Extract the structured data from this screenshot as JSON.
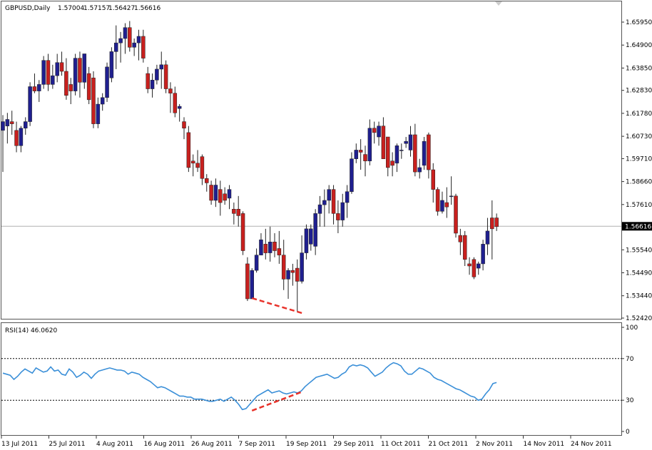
{
  "header": {
    "symbol": "GBPUSD,Daily",
    "open": "1.57004",
    "high": "1.57157",
    "low": "1.56427",
    "close": "1.56616"
  },
  "indicator": {
    "label": "RSI(14) 46.0620",
    "value": 46.062
  },
  "colors": {
    "bull": "#1f1f8f",
    "bear": "#c8201e",
    "rsi_line": "#3a8fd8",
    "annotation": "#e8322a",
    "price_line": "#b0b0b0",
    "current_price_box": "#000000"
  },
  "chart_data": [
    {
      "type": "candlestick",
      "title": "GBPUSD,Daily",
      "ylim": [
        1.5242,
        1.6595
      ],
      "y_ticks": [
        "1.65950",
        "1.64900",
        "1.63850",
        "1.62830",
        "1.61780",
        "1.60730",
        "1.59710",
        "1.58660",
        "1.57610",
        "1.56616",
        "1.55540",
        "1.54490",
        "1.53440",
        "1.52420"
      ],
      "current_price": 1.56616,
      "current_price_label": "1.56616",
      "x_labels": [
        "13 Jul 2011",
        "25 Jul 2011",
        "4 Aug 2011",
        "16 Aug 2011",
        "26 Aug 2011",
        "7 Sep 2011",
        "19 Sep 2011",
        "29 Sep 2011",
        "11 Oct 2011",
        "21 Oct 2011",
        "2 Nov 2011",
        "14 Nov 2011",
        "24 Nov 2011"
      ],
      "candles": [
        {
          "o": 1.61,
          "h": 1.617,
          "l": 1.591,
          "c": 1.614
        },
        {
          "o": 1.612,
          "h": 1.618,
          "l": 1.604,
          "c": 1.615
        },
        {
          "o": 1.614,
          "h": 1.619,
          "l": 1.608,
          "c": 1.613
        },
        {
          "o": 1.61,
          "h": 1.614,
          "l": 1.6,
          "c": 1.603
        },
        {
          "o": 1.603,
          "h": 1.612,
          "l": 1.6,
          "c": 1.611
        },
        {
          "o": 1.611,
          "h": 1.616,
          "l": 1.608,
          "c": 1.614
        },
        {
          "o": 1.614,
          "h": 1.632,
          "l": 1.612,
          "c": 1.63
        },
        {
          "o": 1.63,
          "h": 1.636,
          "l": 1.627,
          "c": 1.628
        },
        {
          "o": 1.628,
          "h": 1.633,
          "l": 1.623,
          "c": 1.631
        },
        {
          "o": 1.631,
          "h": 1.644,
          "l": 1.629,
          "c": 1.642
        },
        {
          "o": 1.642,
          "h": 1.645,
          "l": 1.628,
          "c": 1.631
        },
        {
          "o": 1.631,
          "h": 1.64,
          "l": 1.629,
          "c": 1.635
        },
        {
          "o": 1.635,
          "h": 1.645,
          "l": 1.632,
          "c": 1.641
        },
        {
          "o": 1.641,
          "h": 1.646,
          "l": 1.635,
          "c": 1.637
        },
        {
          "o": 1.637,
          "h": 1.643,
          "l": 1.624,
          "c": 1.626
        },
        {
          "o": 1.631,
          "h": 1.634,
          "l": 1.622,
          "c": 1.628
        },
        {
          "o": 1.628,
          "h": 1.645,
          "l": 1.626,
          "c": 1.643
        },
        {
          "o": 1.643,
          "h": 1.646,
          "l": 1.625,
          "c": 1.632
        },
        {
          "o": 1.632,
          "h": 1.645,
          "l": 1.629,
          "c": 1.645
        },
        {
          "o": 1.636,
          "h": 1.639,
          "l": 1.622,
          "c": 1.624
        },
        {
          "o": 1.634,
          "h": 1.637,
          "l": 1.611,
          "c": 1.613
        },
        {
          "o": 1.613,
          "h": 1.625,
          "l": 1.611,
          "c": 1.622
        },
        {
          "o": 1.622,
          "h": 1.627,
          "l": 1.619,
          "c": 1.625
        },
        {
          "o": 1.625,
          "h": 1.641,
          "l": 1.623,
          "c": 1.639
        },
        {
          "o": 1.634,
          "h": 1.648,
          "l": 1.632,
          "c": 1.646
        },
        {
          "o": 1.646,
          "h": 1.658,
          "l": 1.638,
          "c": 1.65
        },
        {
          "o": 1.65,
          "h": 1.655,
          "l": 1.641,
          "c": 1.652
        },
        {
          "o": 1.652,
          "h": 1.659,
          "l": 1.645,
          "c": 1.657
        },
        {
          "o": 1.657,
          "h": 1.66,
          "l": 1.646,
          "c": 1.648
        },
        {
          "o": 1.648,
          "h": 1.652,
          "l": 1.644,
          "c": 1.65
        },
        {
          "o": 1.65,
          "h": 1.656,
          "l": 1.642,
          "c": 1.653
        },
        {
          "o": 1.653,
          "h": 1.656,
          "l": 1.641,
          "c": 1.643
        },
        {
          "o": 1.636,
          "h": 1.639,
          "l": 1.627,
          "c": 1.629
        },
        {
          "o": 1.629,
          "h": 1.636,
          "l": 1.625,
          "c": 1.633
        },
        {
          "o": 1.633,
          "h": 1.64,
          "l": 1.631,
          "c": 1.638
        },
        {
          "o": 1.638,
          "h": 1.646,
          "l": 1.629,
          "c": 1.64
        },
        {
          "o": 1.64,
          "h": 1.642,
          "l": 1.627,
          "c": 1.629
        },
        {
          "o": 1.629,
          "h": 1.632,
          "l": 1.618,
          "c": 1.627
        },
        {
          "o": 1.627,
          "h": 1.63,
          "l": 1.616,
          "c": 1.618
        },
        {
          "o": 1.62,
          "h": 1.622,
          "l": 1.614,
          "c": 1.621
        },
        {
          "o": 1.614,
          "h": 1.616,
          "l": 1.606,
          "c": 1.611
        },
        {
          "o": 1.609,
          "h": 1.612,
          "l": 1.591,
          "c": 1.593
        },
        {
          "o": 1.596,
          "h": 1.599,
          "l": 1.589,
          "c": 1.595
        },
        {
          "o": 1.595,
          "h": 1.601,
          "l": 1.591,
          "c": 1.593
        },
        {
          "o": 1.598,
          "h": 1.599,
          "l": 1.585,
          "c": 1.588
        },
        {
          "o": 1.588,
          "h": 1.59,
          "l": 1.582,
          "c": 1.586
        },
        {
          "o": 1.585,
          "h": 1.587,
          "l": 1.576,
          "c": 1.578
        },
        {
          "o": 1.578,
          "h": 1.588,
          "l": 1.575,
          "c": 1.585
        },
        {
          "o": 1.583,
          "h": 1.587,
          "l": 1.571,
          "c": 1.577
        },
        {
          "o": 1.581,
          "h": 1.584,
          "l": 1.576,
          "c": 1.578
        },
        {
          "o": 1.579,
          "h": 1.585,
          "l": 1.574,
          "c": 1.583
        },
        {
          "o": 1.574,
          "h": 1.577,
          "l": 1.567,
          "c": 1.572
        },
        {
          "o": 1.574,
          "h": 1.58,
          "l": 1.566,
          "c": 1.571
        },
        {
          "o": 1.572,
          "h": 1.573,
          "l": 1.553,
          "c": 1.555
        },
        {
          "o": 1.549,
          "h": 1.552,
          "l": 1.532,
          "c": 1.533
        },
        {
          "o": 1.533,
          "h": 1.547,
          "l": 1.533,
          "c": 1.546
        },
        {
          "o": 1.546,
          "h": 1.556,
          "l": 1.545,
          "c": 1.553
        },
        {
          "o": 1.553,
          "h": 1.563,
          "l": 1.553,
          "c": 1.56
        },
        {
          "o": 1.558,
          "h": 1.565,
          "l": 1.551,
          "c": 1.554
        },
        {
          "o": 1.554,
          "h": 1.566,
          "l": 1.55,
          "c": 1.559
        },
        {
          "o": 1.559,
          "h": 1.563,
          "l": 1.552,
          "c": 1.555
        },
        {
          "o": 1.556,
          "h": 1.564,
          "l": 1.549,
          "c": 1.553
        },
        {
          "o": 1.553,
          "h": 1.56,
          "l": 1.537,
          "c": 1.542
        },
        {
          "o": 1.542,
          "h": 1.547,
          "l": 1.533,
          "c": 1.546
        },
        {
          "o": 1.546,
          "h": 1.549,
          "l": 1.539,
          "c": 1.545
        },
        {
          "o": 1.547,
          "h": 1.551,
          "l": 1.527,
          "c": 1.541
        },
        {
          "o": 1.541,
          "h": 1.562,
          "l": 1.54,
          "c": 1.554
        },
        {
          "o": 1.554,
          "h": 1.567,
          "l": 1.551,
          "c": 1.565
        },
        {
          "o": 1.558,
          "h": 1.567,
          "l": 1.555,
          "c": 1.565
        },
        {
          "o": 1.557,
          "h": 1.574,
          "l": 1.553,
          "c": 1.572
        },
        {
          "o": 1.572,
          "h": 1.58,
          "l": 1.566,
          "c": 1.576
        },
        {
          "o": 1.576,
          "h": 1.583,
          "l": 1.566,
          "c": 1.578
        },
        {
          "o": 1.578,
          "h": 1.585,
          "l": 1.572,
          "c": 1.583
        },
        {
          "o": 1.583,
          "h": 1.585,
          "l": 1.567,
          "c": 1.572
        },
        {
          "o": 1.572,
          "h": 1.578,
          "l": 1.563,
          "c": 1.569
        },
        {
          "o": 1.569,
          "h": 1.581,
          "l": 1.566,
          "c": 1.577
        },
        {
          "o": 1.577,
          "h": 1.585,
          "l": 1.57,
          "c": 1.582
        },
        {
          "o": 1.582,
          "h": 1.6,
          "l": 1.581,
          "c": 1.597
        },
        {
          "o": 1.597,
          "h": 1.604,
          "l": 1.595,
          "c": 1.601
        },
        {
          "o": 1.601,
          "h": 1.606,
          "l": 1.592,
          "c": 1.6
        },
        {
          "o": 1.599,
          "h": 1.603,
          "l": 1.589,
          "c": 1.596
        },
        {
          "o": 1.596,
          "h": 1.615,
          "l": 1.594,
          "c": 1.611
        },
        {
          "o": 1.611,
          "h": 1.614,
          "l": 1.604,
          "c": 1.609
        },
        {
          "o": 1.607,
          "h": 1.614,
          "l": 1.603,
          "c": 1.612
        },
        {
          "o": 1.612,
          "h": 1.616,
          "l": 1.597,
          "c": 1.597
        },
        {
          "o": 1.607,
          "h": 1.607,
          "l": 1.589,
          "c": 1.593
        },
        {
          "o": 1.596,
          "h": 1.6,
          "l": 1.589,
          "c": 1.594
        },
        {
          "o": 1.595,
          "h": 1.604,
          "l": 1.591,
          "c": 1.603
        },
        {
          "o": 1.601,
          "h": 1.604,
          "l": 1.597,
          "c": 1.601
        },
        {
          "o": 1.604,
          "h": 1.607,
          "l": 1.602,
          "c": 1.605
        },
        {
          "o": 1.601,
          "h": 1.612,
          "l": 1.598,
          "c": 1.608
        },
        {
          "o": 1.608,
          "h": 1.613,
          "l": 1.589,
          "c": 1.591
        },
        {
          "o": 1.591,
          "h": 1.597,
          "l": 1.588,
          "c": 1.593
        },
        {
          "o": 1.594,
          "h": 1.607,
          "l": 1.592,
          "c": 1.605
        },
        {
          "o": 1.608,
          "h": 1.609,
          "l": 1.588,
          "c": 1.592
        },
        {
          "o": 1.592,
          "h": 1.595,
          "l": 1.577,
          "c": 1.583
        },
        {
          "o": 1.583,
          "h": 1.584,
          "l": 1.571,
          "c": 1.573
        },
        {
          "o": 1.573,
          "h": 1.582,
          "l": 1.572,
          "c": 1.578
        },
        {
          "o": 1.577,
          "h": 1.584,
          "l": 1.57,
          "c": 1.575
        },
        {
          "o": 1.58,
          "h": 1.589,
          "l": 1.576,
          "c": 1.58
        },
        {
          "o": 1.58,
          "h": 1.581,
          "l": 1.561,
          "c": 1.563
        },
        {
          "o": 1.562,
          "h": 1.565,
          "l": 1.553,
          "c": 1.559
        },
        {
          "o": 1.562,
          "h": 1.564,
          "l": 1.548,
          "c": 1.551
        },
        {
          "o": 1.549,
          "h": 1.552,
          "l": 1.544,
          "c": 1.548
        },
        {
          "o": 1.551,
          "h": 1.552,
          "l": 1.542,
          "c": 1.543
        },
        {
          "o": 1.547,
          "h": 1.55,
          "l": 1.544,
          "c": 1.549
        },
        {
          "o": 1.549,
          "h": 1.56,
          "l": 1.546,
          "c": 1.558
        },
        {
          "o": 1.558,
          "h": 1.57,
          "l": 1.553,
          "c": 1.564
        },
        {
          "o": 1.57,
          "h": 1.578,
          "l": 1.551,
          "c": 1.565
        },
        {
          "o": 1.57,
          "h": 1.572,
          "l": 1.564,
          "c": 1.566
        }
      ],
      "annotation_line": {
        "from": {
          "bar": 55,
          "price": 1.5333
        },
        "to": {
          "bar": 66,
          "price": 1.5265
        }
      }
    },
    {
      "type": "line",
      "title": "RSI(14) 46.0620",
      "ylim": [
        0,
        100
      ],
      "y_ticks": [
        "100",
        "70",
        "30",
        "0"
      ],
      "levels": [
        70,
        30
      ],
      "series": [
        {
          "values": [
            56,
            55,
            54,
            50,
            53,
            57,
            60,
            58,
            56,
            61,
            59,
            57,
            58,
            62,
            58,
            59,
            55,
            54,
            60,
            57,
            52,
            54,
            57,
            55,
            51,
            55,
            58,
            59,
            60,
            61,
            60,
            59,
            59,
            58,
            55,
            57,
            56,
            55,
            52,
            50,
            48,
            45,
            42,
            43,
            42,
            40,
            38,
            36,
            34,
            34,
            33,
            33,
            31,
            31,
            31,
            30,
            29,
            29,
            30,
            31,
            29,
            31,
            33,
            30,
            26,
            21,
            22,
            26,
            30,
            34,
            36,
            38,
            40,
            37,
            38,
            39,
            37,
            36,
            37,
            38,
            37,
            39,
            43,
            46,
            49,
            52,
            53,
            54,
            55,
            53,
            51,
            52,
            55,
            57,
            62,
            64,
            63,
            64,
            63,
            61,
            57,
            53,
            55,
            57,
            61,
            64,
            66,
            65,
            63,
            58,
            55,
            55,
            58,
            61,
            60,
            58,
            56,
            52,
            50,
            49,
            47,
            45,
            43,
            41,
            40,
            38,
            36,
            34,
            33,
            30,
            31,
            36,
            40,
            46,
            47
          ],
          "current": 46.062
        }
      ],
      "annotation_line": {
        "from": {
          "bar": 55,
          "rsi": 20
        },
        "to": {
          "bar": 66,
          "rsi": 38
        }
      }
    }
  ]
}
